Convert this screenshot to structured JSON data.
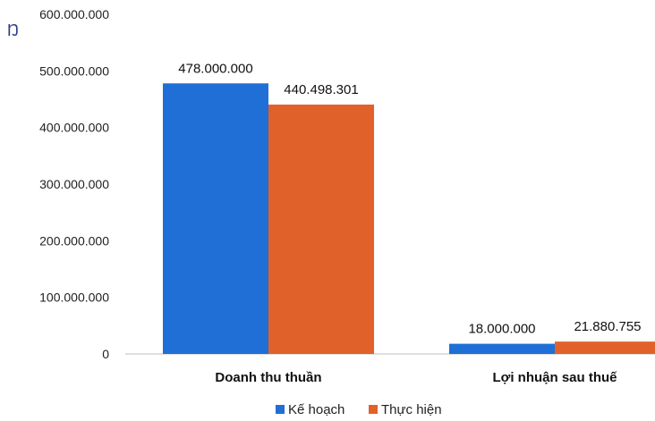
{
  "chart_data": {
    "type": "bar",
    "categories": [
      "Doanh thu thuần",
      "Lợi nhuận sau thuế"
    ],
    "series": [
      {
        "name": "Kế hoạch",
        "values": [
          478000000,
          18000000
        ],
        "color": "#1f6fd6",
        "labels": [
          "478.000.000",
          "18.000.000"
        ]
      },
      {
        "name": "Thực hiện",
        "values": [
          440498301,
          21880755
        ],
        "color": "#e0622a",
        "labels": [
          "440.498.301",
          "21.880.755"
        ]
      }
    ],
    "ylim": [
      0,
      600000000
    ],
    "yticks": [
      "0",
      "100.000.000",
      "200.000.000",
      "300.000.000",
      "400.000.000",
      "500.000.000",
      "600.000.000"
    ],
    "grid": false,
    "legend_position": "bottom",
    "stray_mark": "Ŋ"
  }
}
